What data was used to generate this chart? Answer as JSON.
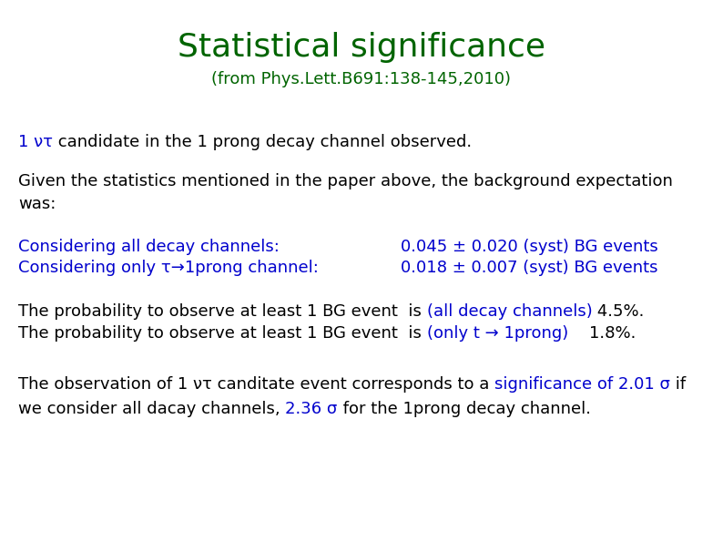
{
  "title": "Statistical significance",
  "subtitle": "(from Phys.Lett.B691:138-145,2010)",
  "title_color": "#006400",
  "subtitle_color": "#006400",
  "blue_color": "#0000CD",
  "black_color": "#000000",
  "bg_color": "#ffffff",
  "title_fontsize": 26,
  "subtitle_fontsize": 13,
  "body_fontsize": 13,
  "line1_blue": "1 ντ",
  "line1_black": " candidate in the 1 prong decay channel observed.",
  "line2": "Given the statistics mentioned in the paper above, the background expectation",
  "line3": "was:",
  "line4a_blue": "Considering all decay channels:",
  "line4a_value": "0.045 ± 0.020 (syst) BG events",
  "line4b_blue": "Considering only τ→1prong channel:",
  "line4b_value": "0.018 ± 0.007 (syst) BG events",
  "line5_black1": "The probability to observe at least 1 BG event  is ",
  "line5_blue": "(all decay channels)",
  "line5_black2": " 4.5%.",
  "line6_black1": "The probability to observe at least 1 BG event  is ",
  "line6_blue": "(only t → 1prong)",
  "line6_black2": "    1.8%.",
  "line7_black1": "The observation of 1 ντ canditate event corresponds to a ",
  "line7_blue": "significance of 2.01 σ",
  "line7_black2": " if",
  "line8_black1": "we consider all dacay channels, ",
  "line8_blue": "2.36 σ",
  "line8_black2": " for the 1prong decay channel."
}
